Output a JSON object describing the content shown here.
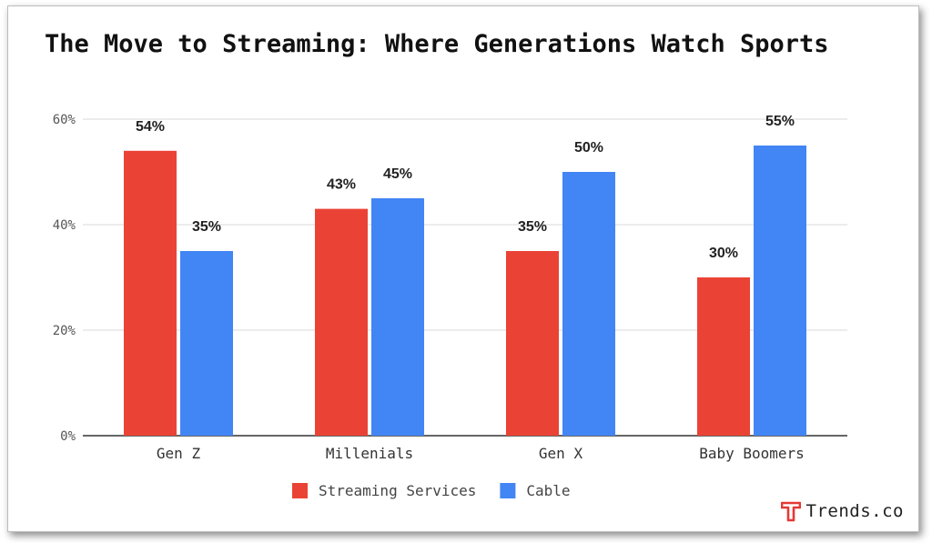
{
  "chart_data": {
    "type": "bar",
    "title": "The Move to Streaming: Where Generations Watch Sports",
    "categories": [
      "Gen Z",
      "Millenials",
      "Gen X",
      "Baby Boomers"
    ],
    "series": [
      {
        "name": "Streaming Services",
        "color": "#ea4335",
        "values": [
          54,
          43,
          35,
          30
        ],
        "labels": [
          "54%",
          "43%",
          "35%",
          "30%"
        ]
      },
      {
        "name": "Cable",
        "color": "#4285f4",
        "values": [
          35,
          45,
          50,
          55
        ],
        "labels": [
          "35%",
          "45%",
          "50%",
          "55%"
        ]
      }
    ],
    "ylim": [
      0,
      60
    ],
    "yticks": [
      {
        "value": 0,
        "label": "0%"
      },
      {
        "value": 20,
        "label": "20%"
      },
      {
        "value": 40,
        "label": "40%"
      },
      {
        "value": 60,
        "label": "60%"
      }
    ],
    "grid": true,
    "legend_position": "bottom"
  },
  "brand": {
    "name": "Trends.co",
    "logo_icon": "trends-t-logo-icon",
    "accent": "#e53935"
  }
}
